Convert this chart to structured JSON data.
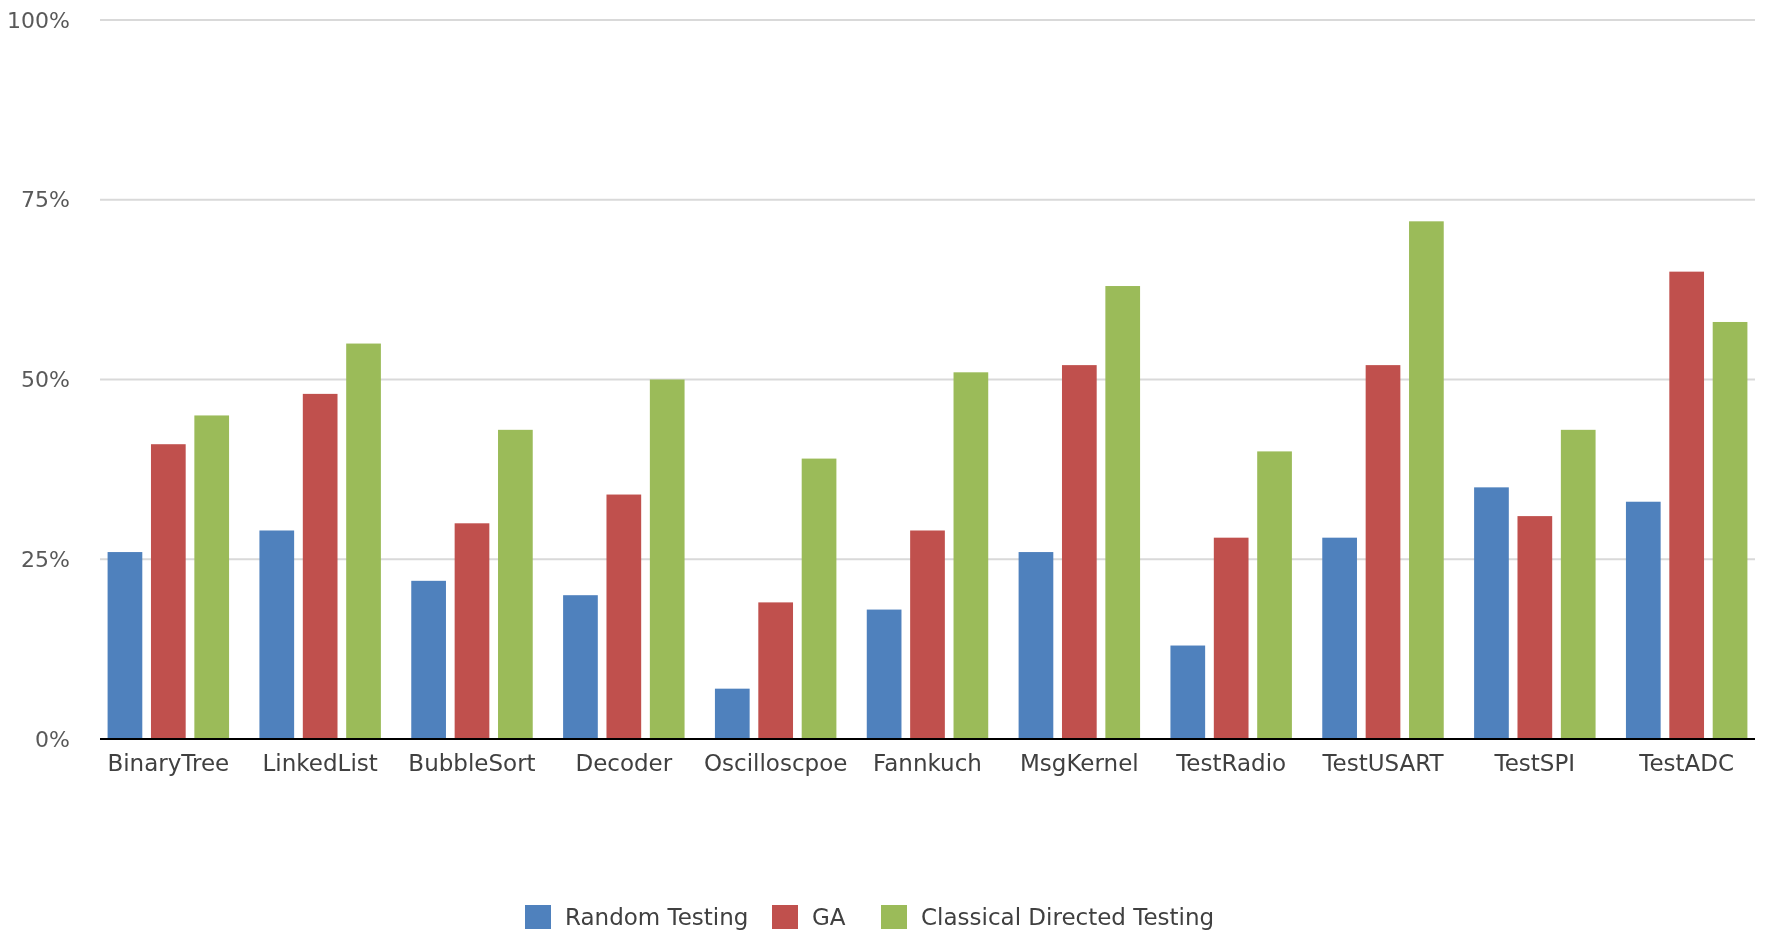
{
  "chart_data": {
    "type": "bar",
    "categories": [
      "BinaryTree",
      "LinkedList",
      "BubbleSort",
      "Decoder",
      "Oscilloscpoe",
      "Fannkuch",
      "MsgKernel",
      "TestRadio",
      "TestUSART",
      "TestSPI",
      "TestADC"
    ],
    "series": [
      {
        "name": "Random Testing",
        "color": "#4f81bd",
        "values": [
          26,
          29,
          22,
          20,
          7,
          18,
          26,
          13,
          28,
          35,
          33
        ]
      },
      {
        "name": "GA",
        "color": "#c0504d",
        "values": [
          41,
          48,
          30,
          34,
          19,
          29,
          52,
          28,
          52,
          31,
          65
        ]
      },
      {
        "name": "Classical Directed Testing",
        "color": "#9bbb59",
        "values": [
          45,
          55,
          43,
          50,
          39,
          51,
          63,
          40,
          72,
          43,
          58
        ]
      }
    ],
    "ylim": [
      0,
      100
    ],
    "yticks": [
      {
        "value": 0,
        "label": "0%"
      },
      {
        "value": 25,
        "label": "25%"
      },
      {
        "value": 50,
        "label": "50%"
      },
      {
        "value": 75,
        "label": "75%"
      },
      {
        "value": 100,
        "label": "100%"
      }
    ],
    "grid": "y",
    "legend": "bottom"
  }
}
